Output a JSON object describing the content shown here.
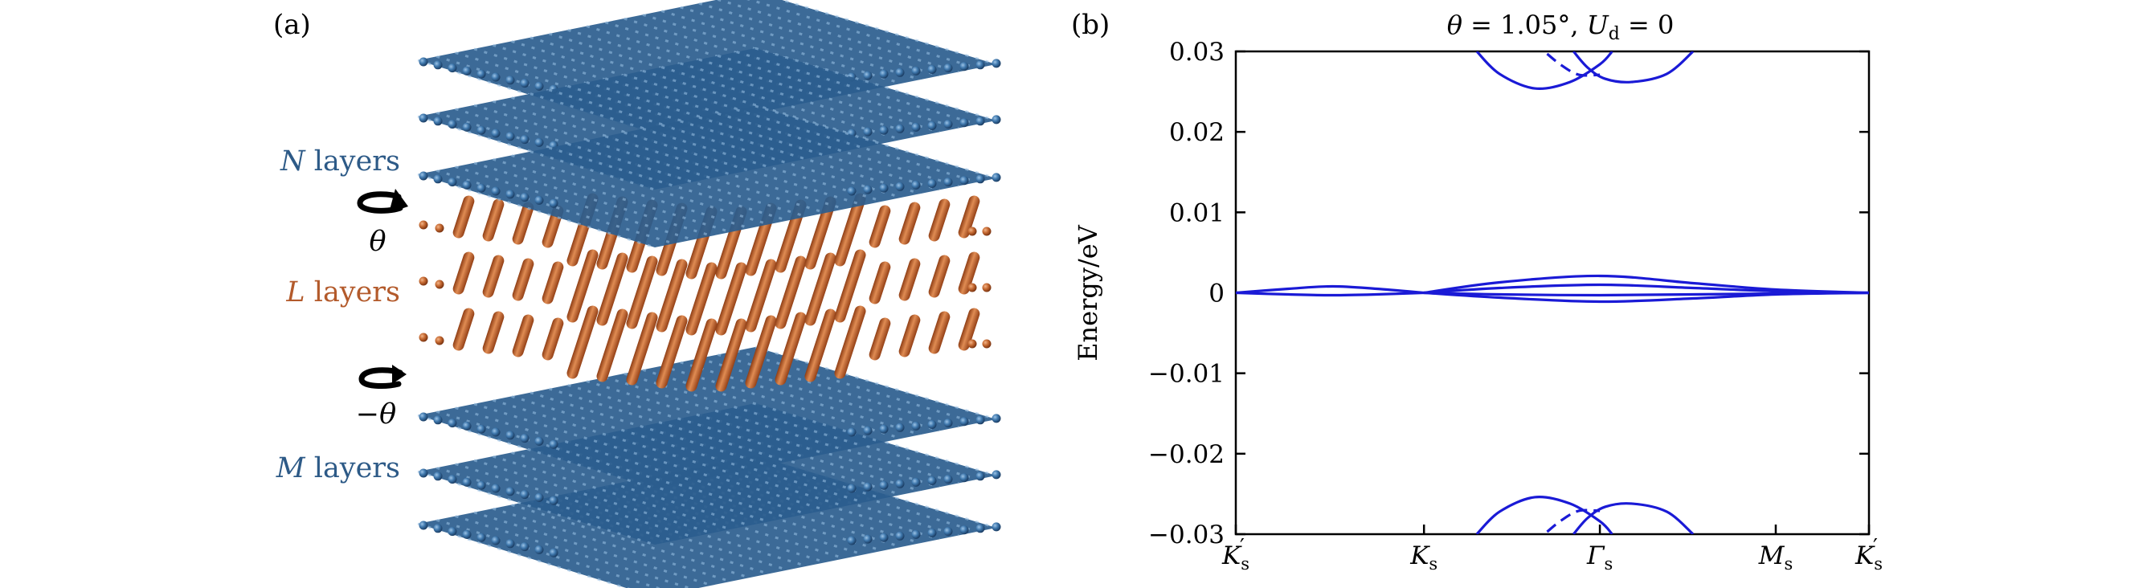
{
  "panel_a": {
    "label": "(a)",
    "layer_labels": {
      "top": {
        "symbol": "N",
        "word": "layers"
      },
      "middle": {
        "symbol": "L",
        "word": "layers"
      },
      "bottom": {
        "symbol": "M",
        "word": "layers"
      }
    },
    "angle_labels": {
      "upper": "θ",
      "lower": "−θ"
    },
    "colors": {
      "blue_layers": "#2b5d8e",
      "orange_layers": "#b85a28",
      "label_blue": "#2d5a87",
      "label_orange": "#b35a2b"
    }
  },
  "panel_b": {
    "label": "(b)",
    "title_parts": {
      "theta": "θ",
      "eq1": " = 1.05°, ",
      "U": "U",
      "sub": "d",
      "eq2": " = 0"
    },
    "ylabel": "Energy/eV",
    "line_color": "#1a1ad6"
  },
  "chart_data": {
    "type": "line",
    "title": "θ = 1.05°, U_d = 0",
    "xlabel": "",
    "ylabel": "Energy/eV",
    "ylim": [
      -0.03,
      0.03
    ],
    "xlim": [
      0,
      3.6
    ],
    "grid": false,
    "x_ticks": [
      {
        "x": 0,
        "base": "K",
        "sub": "s",
        "prime": "′"
      },
      {
        "x": 1.07,
        "base": "K",
        "sub": "s",
        "prime": ""
      },
      {
        "x": 2.07,
        "base": "Γ",
        "sub": "s",
        "prime": ""
      },
      {
        "x": 3.07,
        "base": "M",
        "sub": "s",
        "prime": ""
      },
      {
        "x": 3.6,
        "base": "K",
        "sub": "s",
        "prime": "′"
      }
    ],
    "y_ticks": [
      {
        "v": 0.03,
        "label": "0.03"
      },
      {
        "v": 0.02,
        "label": "0.02"
      },
      {
        "v": 0.01,
        "label": "0.01"
      },
      {
        "v": 0,
        "label": "0"
      },
      {
        "v": -0.01,
        "label": "−0.01"
      },
      {
        "v": -0.02,
        "label": "−0.02"
      },
      {
        "v": -0.03,
        "label": "−0.03"
      }
    ],
    "series": [
      {
        "style": "solid",
        "points": [
          [
            0,
            0
          ],
          [
            0.3,
            0.0005
          ],
          [
            0.55,
            0.0008
          ],
          [
            0.8,
            0.0005
          ],
          [
            1.07,
            0
          ]
        ]
      },
      {
        "style": "solid",
        "points": [
          [
            0,
            0
          ],
          [
            0.3,
            -0.0002
          ],
          [
            0.55,
            -0.0003
          ],
          [
            0.8,
            -0.0002
          ],
          [
            1.07,
            0
          ]
        ]
      },
      {
        "style": "solid",
        "points": [
          [
            1.07,
            0
          ],
          [
            1.5,
            0.0013
          ],
          [
            2.07,
            0.0021
          ],
          [
            2.6,
            0.0012
          ],
          [
            3.07,
            0.0004
          ],
          [
            3.6,
            0
          ]
        ]
      },
      {
        "style": "solid",
        "points": [
          [
            1.07,
            0
          ],
          [
            1.5,
            0.0006
          ],
          [
            2.07,
            0.001
          ],
          [
            2.6,
            0.0006
          ],
          [
            3.07,
            0.0002
          ],
          [
            3.6,
            0
          ]
        ]
      },
      {
        "style": "solid",
        "points": [
          [
            1.07,
            0
          ],
          [
            1.5,
            -0.0002
          ],
          [
            2.07,
            -0.0003
          ],
          [
            2.6,
            -0.0002
          ],
          [
            3.07,
            -0.0001
          ],
          [
            3.6,
            0
          ]
        ]
      },
      {
        "style": "solid",
        "points": [
          [
            1.07,
            0
          ],
          [
            1.5,
            -0.0006
          ],
          [
            2.07,
            -0.0011
          ],
          [
            2.6,
            -0.0007
          ],
          [
            3.07,
            -0.0002
          ],
          [
            3.6,
            0
          ]
        ]
      },
      {
        "style": "solid",
        "points": [
          [
            1.37,
            0.03
          ],
          [
            1.5,
            0.0272
          ],
          [
            1.7,
            0.0254
          ],
          [
            1.9,
            0.0262
          ],
          [
            2.07,
            0.0284
          ],
          [
            2.14,
            0.03
          ]
        ]
      },
      {
        "style": "solid",
        "points": [
          [
            1.92,
            0.03
          ],
          [
            2.0,
            0.028
          ],
          [
            2.1,
            0.0266
          ],
          [
            2.25,
            0.0262
          ],
          [
            2.45,
            0.0272
          ],
          [
            2.6,
            0.03
          ]
        ]
      },
      {
        "style": "dashed",
        "points": [
          [
            1.77,
            0.0297
          ],
          [
            1.85,
            0.0283
          ],
          [
            1.95,
            0.0271
          ],
          [
            2.07,
            0.0271
          ]
        ]
      },
      {
        "style": "solid",
        "points": [
          [
            1.37,
            -0.03
          ],
          [
            1.5,
            -0.0272
          ],
          [
            1.7,
            -0.0254
          ],
          [
            1.9,
            -0.0262
          ],
          [
            2.07,
            -0.0284
          ],
          [
            2.14,
            -0.03
          ]
        ]
      },
      {
        "style": "solid",
        "points": [
          [
            1.92,
            -0.03
          ],
          [
            2.0,
            -0.028
          ],
          [
            2.1,
            -0.0266
          ],
          [
            2.25,
            -0.0262
          ],
          [
            2.45,
            -0.0272
          ],
          [
            2.6,
            -0.03
          ]
        ]
      },
      {
        "style": "dashed",
        "points": [
          [
            1.77,
            -0.0297
          ],
          [
            1.85,
            -0.0283
          ],
          [
            1.95,
            -0.0271
          ],
          [
            2.07,
            -0.0271
          ]
        ]
      }
    ]
  }
}
